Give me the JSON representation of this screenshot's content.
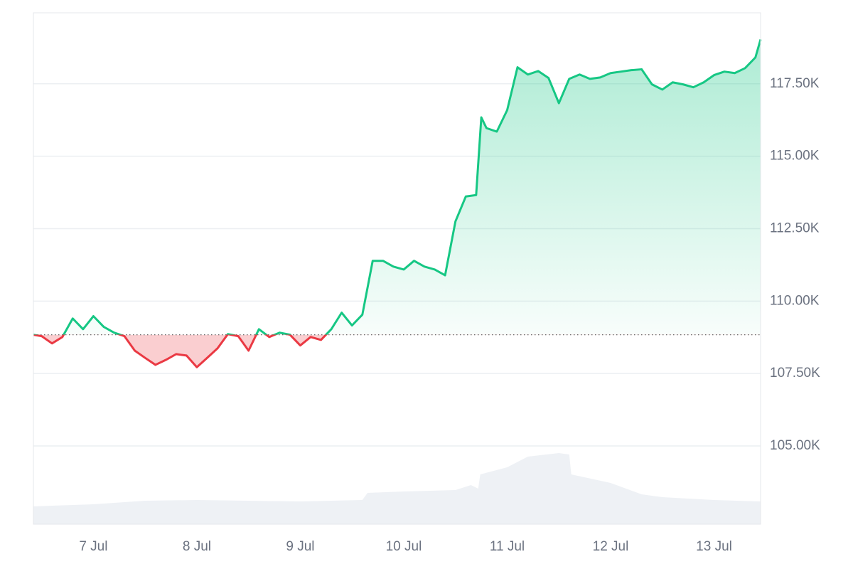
{
  "chart_data": {
    "type": "baseline-area",
    "x": [
      6.42,
      6.5,
      6.6,
      6.7,
      6.8,
      6.9,
      7.0,
      7.1,
      7.2,
      7.3,
      7.4,
      7.5,
      7.6,
      7.7,
      7.8,
      7.9,
      8.0,
      8.1,
      8.2,
      8.3,
      8.4,
      8.5,
      8.6,
      8.7,
      8.8,
      8.9,
      9.0,
      9.1,
      9.2,
      9.3,
      9.4,
      9.5,
      9.6,
      9.7,
      9.8,
      9.9,
      10.0,
      10.1,
      10.2,
      10.3,
      10.4,
      10.5,
      10.6,
      10.7,
      10.75,
      10.8,
      10.9,
      11.0,
      11.1,
      11.2,
      11.3,
      11.4,
      11.5,
      11.6,
      11.7,
      11.8,
      11.9,
      12.0,
      12.1,
      12.2,
      12.3,
      12.4,
      12.5,
      12.6,
      12.7,
      12.8,
      12.9,
      13.0,
      13.1,
      13.2,
      13.3,
      13.4,
      13.45
    ],
    "values": [
      108837,
      108790,
      108540,
      108760,
      109400,
      109030,
      109480,
      109110,
      108910,
      108790,
      108290,
      108040,
      107800,
      107970,
      108170,
      108120,
      107720,
      108040,
      108370,
      108860,
      108790,
      108290,
      109030,
      108760,
      108910,
      108840,
      108470,
      108760,
      108660,
      109030,
      109600,
      109160,
      109530,
      111390,
      111390,
      111190,
      111090,
      111390,
      111190,
      111090,
      110890,
      112750,
      113610,
      113660,
      116340,
      115970,
      115850,
      116590,
      118070,
      117820,
      117940,
      117700,
      116830,
      117670,
      117820,
      117670,
      117720,
      117870,
      117920,
      117970,
      118000,
      117480,
      117300,
      117550,
      117480,
      117380,
      117550,
      117800,
      117920,
      117870,
      118040,
      118410,
      119030
    ],
    "baseline": 108837,
    "color_up": "#16c784",
    "color_down": "#ea3943",
    "xlim": [
      6.42,
      13.45
    ],
    "xticks": [
      {
        "value": 7,
        "label": "7 Jul"
      },
      {
        "value": 8,
        "label": "8 Jul"
      },
      {
        "value": 9,
        "label": "9 Jul"
      },
      {
        "value": 10,
        "label": "10 Jul"
      },
      {
        "value": 11,
        "label": "11 Jul"
      },
      {
        "value": 12,
        "label": "12 Jul"
      },
      {
        "value": 13,
        "label": "13 Jul"
      }
    ],
    "ylim": [
      102300,
      119950
    ],
    "yticks": [
      {
        "value": 105000,
        "label": "105.00K"
      },
      {
        "value": 107500,
        "label": "107.50K"
      },
      {
        "value": 110000,
        "label": "110.00K"
      },
      {
        "value": 112500,
        "label": "112.50K"
      },
      {
        "value": 115000,
        "label": "115.00K"
      },
      {
        "value": 117500,
        "label": "117.50K"
      }
    ],
    "grid": true,
    "volume": {
      "color": "#eef1f5",
      "lim": [
        0,
        100
      ],
      "x": [
        6.42,
        6.6,
        7.0,
        7.5,
        8.0,
        8.5,
        9.0,
        9.6,
        9.65,
        10.0,
        10.5,
        10.65,
        10.72,
        10.74,
        11.0,
        11.2,
        11.5,
        11.6,
        11.62,
        12.0,
        12.3,
        12.5,
        13.0,
        13.45
      ],
      "values": [
        25,
        26,
        28,
        33,
        34,
        33,
        32,
        34,
        44,
        46,
        48,
        55,
        50,
        70,
        80,
        95,
        100,
        98,
        70,
        58,
        42,
        38,
        34,
        32
      ]
    }
  }
}
